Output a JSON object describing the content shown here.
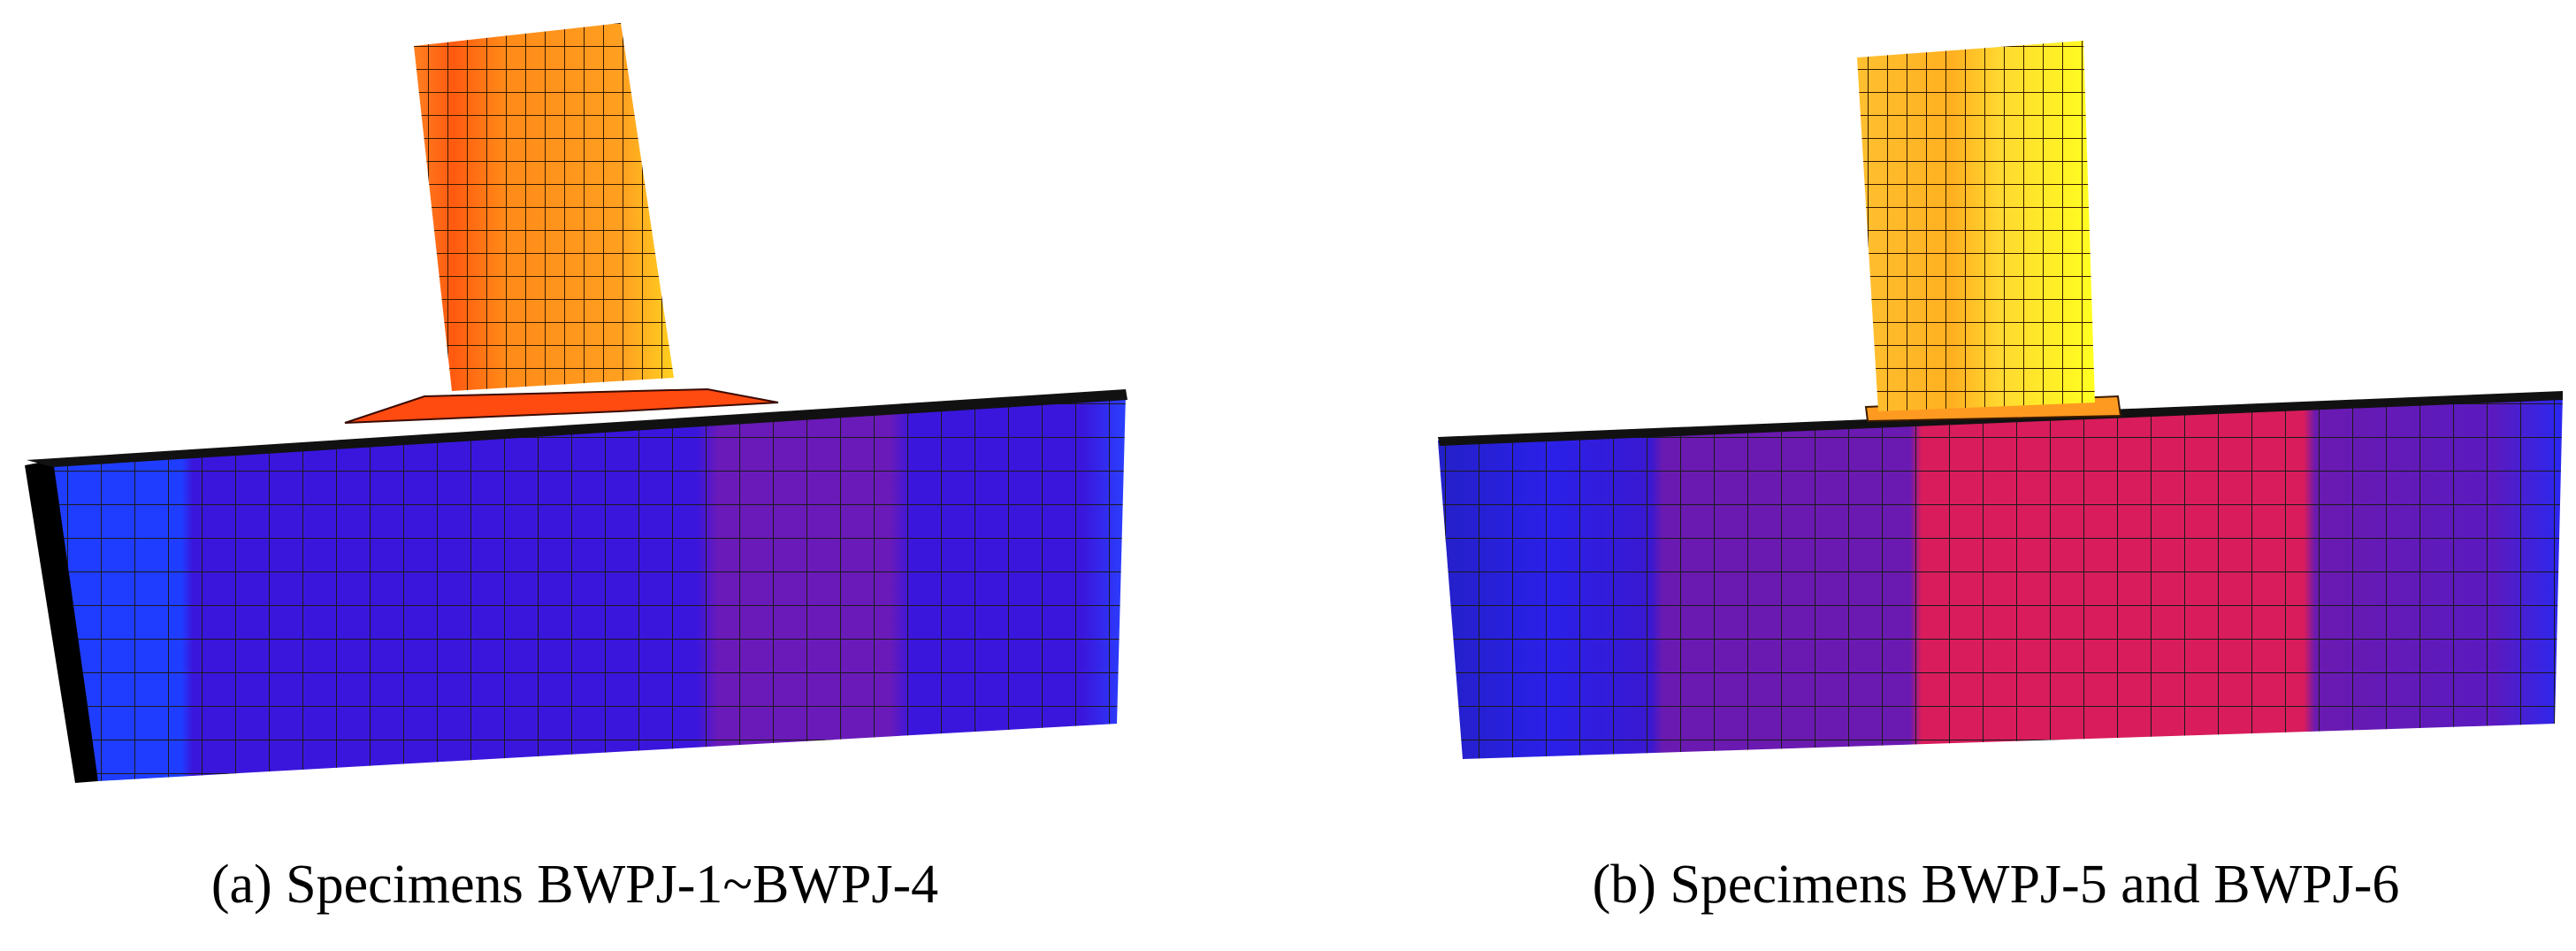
{
  "panels": [
    {
      "caption": "(a) Specimens BWPJ-1~BWPJ-4"
    },
    {
      "caption": "(b) Specimens BWPJ-5 and BWPJ-6"
    }
  ]
}
